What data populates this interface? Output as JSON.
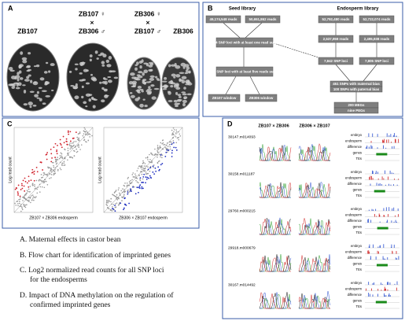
{
  "panels": {
    "a": {
      "label": "A",
      "labels": [
        "ZB107",
        "ZB107 ♀",
        "×",
        "ZB306 ♂",
        "ZB306 ♀",
        "×",
        "ZB107 ♂",
        "ZB306"
      ]
    },
    "b": {
      "label": "B",
      "seed_library": "Seed library",
      "endosperm_library": "Endosperm library",
      "nodes": [
        "49,174,548 reads",
        "50,651,862 reads",
        "52,792,480 reads",
        "52,722,074 reads",
        "10,164 SNP loci with at least one read support",
        "8,546 SNP loci with at least five reads support",
        "ZB107 window",
        "ZB306 window",
        "2,537,959 reads",
        "2,495,938 reads",
        "7,842 SNP loci",
        "7,805 SNP loci",
        "451 SNPs with maternal bias",
        "100 SNPs with paternal bias",
        "200 MEGs",
        "nine PEGs"
      ]
    },
    "c": {
      "label": "C",
      "y_label": "Log read count",
      "x_labels": [
        "ZB107 × ZB306 endosperm",
        "ZB306 × ZB107 endosperm"
      ]
    },
    "d": {
      "label": "D",
      "columns": [
        "ZB107 × ZB306",
        "ZB306 × ZB107"
      ],
      "genes": [
        "30147.m014093",
        "30158.m011187",
        "29760.m000215",
        "29918.m000679",
        "30167.m014492"
      ],
      "tracks": [
        "embryo",
        "endosperm",
        "difference",
        "genes",
        "TEs"
      ]
    }
  },
  "captions": [
    "A. Maternal effects in castor bean",
    "B. Flow chart for identification of imprinted genes",
    "C. Log2 normalized read counts for all SNP loci",
    "for the endosperms",
    "D. Impact of DNA methylation on the regulation of",
    "confirmed imprinted genes"
  ]
}
